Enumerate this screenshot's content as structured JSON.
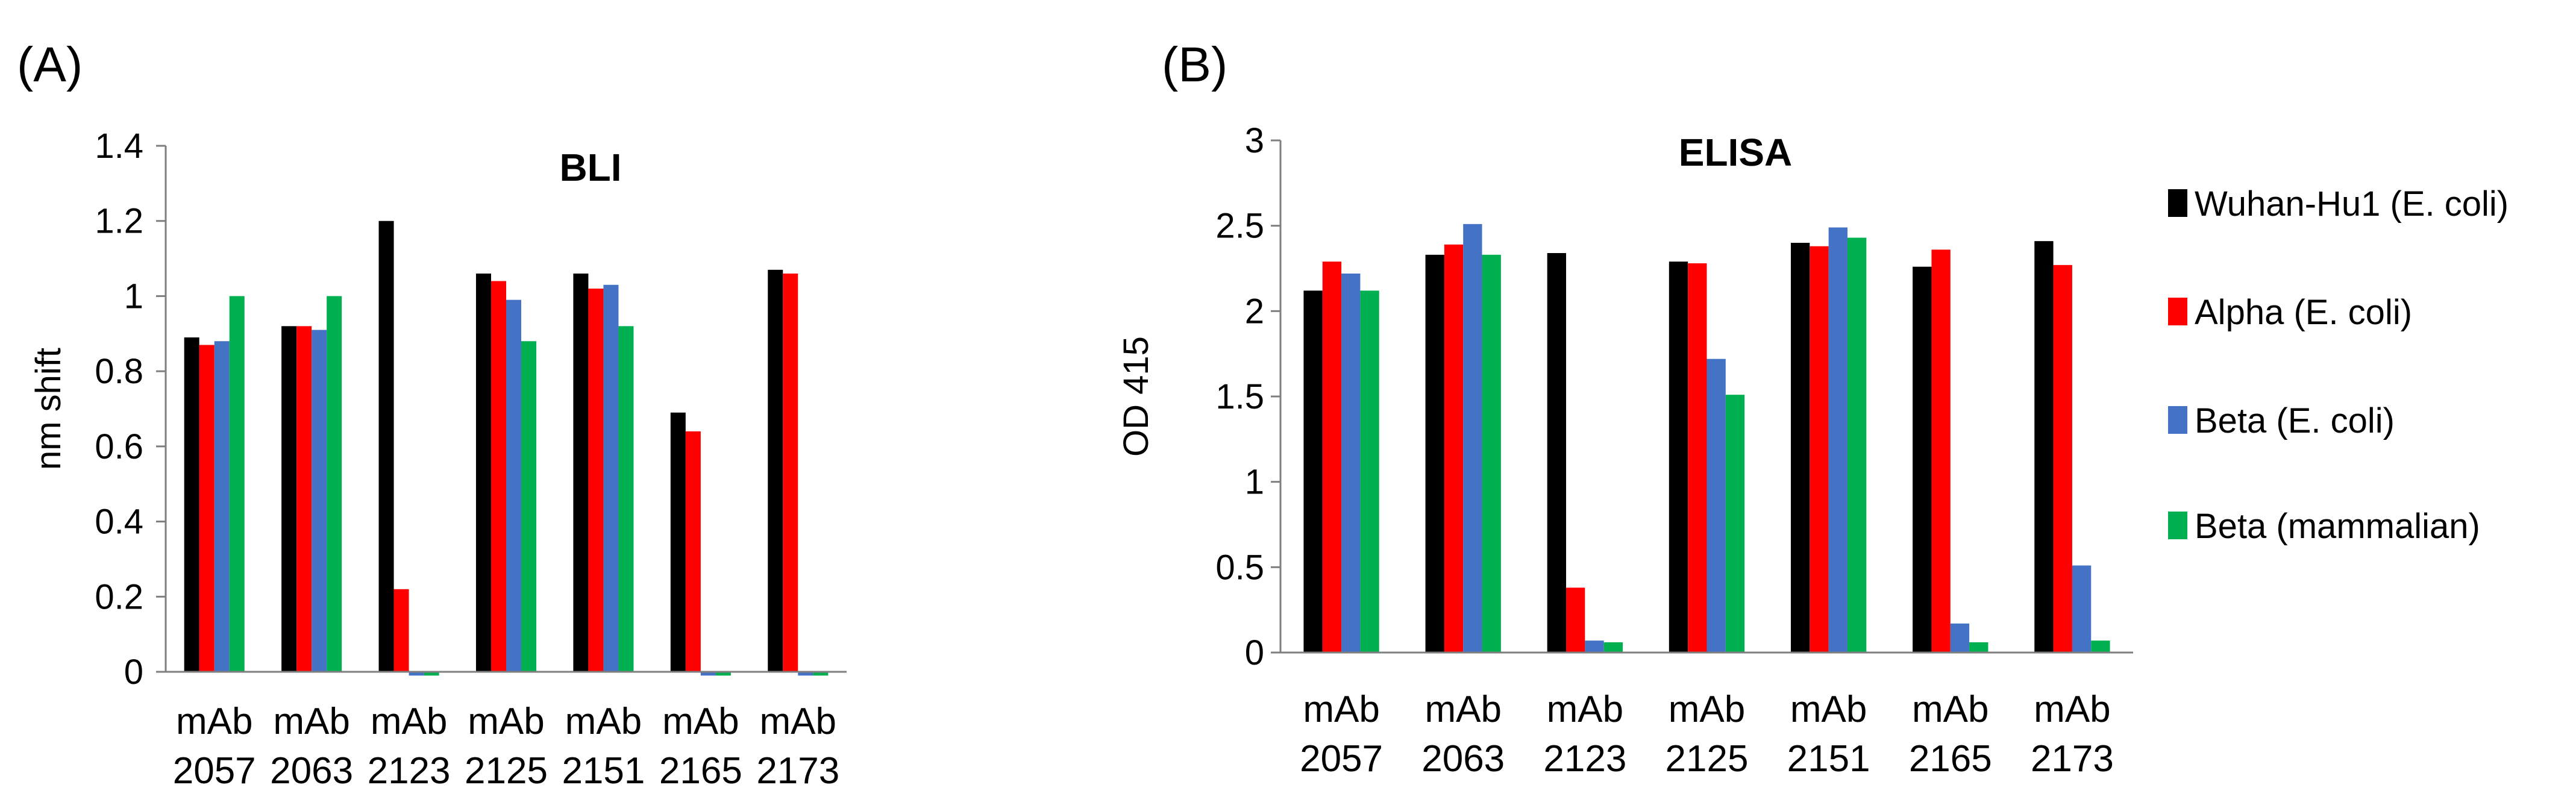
{
  "panels": [
    {
      "label": "(A)"
    },
    {
      "label": "(B)"
    }
  ],
  "legend": [
    {
      "name": "Wuhan-Hu1 (E. coli)",
      "color": "#000000"
    },
    {
      "name": "Alpha (E. coli)",
      "color": "#ff0000"
    },
    {
      "name": "Beta (E. coli)",
      "color": "#4472c4"
    },
    {
      "name": "Beta (mammalian)",
      "color": "#00b050"
    }
  ],
  "chart_data": [
    {
      "type": "bar",
      "title": "BLI",
      "xlabel": "",
      "ylabel": "nm shift",
      "ylim": [
        0,
        1.4
      ],
      "yticks": [
        "0",
        "0.2",
        "0.4",
        "0.6",
        "0.8",
        "1",
        "1.2",
        "1.4"
      ],
      "categories": [
        [
          "mAb",
          "2057"
        ],
        [
          "mAb",
          "2063"
        ],
        [
          "mAb",
          "2123"
        ],
        [
          "mAb",
          "2125"
        ],
        [
          "mAb",
          "2151"
        ],
        [
          "mAb",
          "2165"
        ],
        [
          "mAb",
          "2173"
        ]
      ],
      "series": [
        {
          "name": "Wuhan-Hu1 (E. coli)",
          "color": "#000000",
          "values": [
            0.89,
            0.92,
            1.2,
            1.06,
            1.06,
            0.69,
            1.07
          ]
        },
        {
          "name": "Alpha (E. coli)",
          "color": "#ff0000",
          "values": [
            0.87,
            0.92,
            0.22,
            1.04,
            1.02,
            0.64,
            1.06
          ]
        },
        {
          "name": "Beta (E. coli)",
          "color": "#4472c4",
          "values": [
            0.88,
            0.91,
            -0.01,
            0.99,
            1.03,
            -0.01,
            -0.01
          ]
        },
        {
          "name": "Beta (mammalian)",
          "color": "#00b050",
          "values": [
            1.0,
            1.0,
            -0.01,
            0.88,
            0.92,
            -0.01,
            -0.01
          ]
        }
      ]
    },
    {
      "type": "bar",
      "title": "ELISA",
      "xlabel": "",
      "ylabel": "OD 415",
      "ylim": [
        0,
        3
      ],
      "yticks": [
        "0",
        "0.5",
        "1",
        "1.5",
        "2",
        "2.5",
        "3"
      ],
      "categories": [
        [
          "mAb",
          "2057"
        ],
        [
          "mAb",
          "2063"
        ],
        [
          "mAb",
          "2123"
        ],
        [
          "mAb",
          "2125"
        ],
        [
          "mAb",
          "2151"
        ],
        [
          "mAb",
          "2165"
        ],
        [
          "mAb",
          "2173"
        ]
      ],
      "series": [
        {
          "name": "Wuhan-Hu1 (E. coli)",
          "color": "#000000",
          "values": [
            2.12,
            2.33,
            2.34,
            2.29,
            2.4,
            2.26,
            2.41
          ]
        },
        {
          "name": "Alpha (E. coli)",
          "color": "#ff0000",
          "values": [
            2.29,
            2.39,
            0.38,
            2.28,
            2.38,
            2.36,
            2.27
          ]
        },
        {
          "name": "Beta (E. coli)",
          "color": "#4472c4",
          "values": [
            2.22,
            2.51,
            0.07,
            1.72,
            2.49,
            0.17,
            0.51
          ]
        },
        {
          "name": "Beta (mammalian)",
          "color": "#00b050",
          "values": [
            2.12,
            2.33,
            0.06,
            1.51,
            2.43,
            0.06,
            0.07
          ]
        }
      ]
    }
  ]
}
